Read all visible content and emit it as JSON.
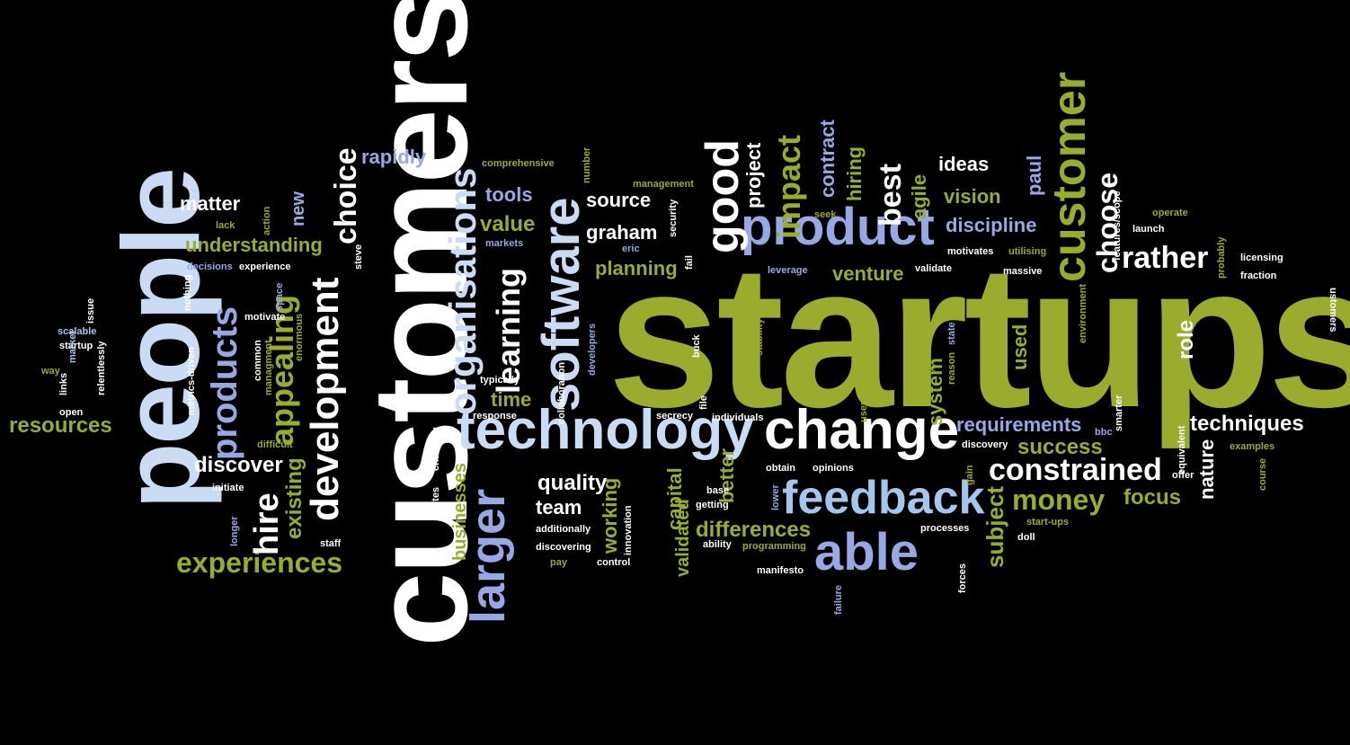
{
  "palette": {
    "white": "#ffffff",
    "green": "#9aab2e",
    "blue": "#a5c6ec",
    "lightblue": "#c9dcf3",
    "purple": "#98a8e4",
    "background": "#000000"
  },
  "words": [
    {
      "text": "startups",
      "color": "green"
    },
    {
      "text": "customers",
      "color": "white"
    },
    {
      "text": "people",
      "color": "lightblue"
    },
    {
      "text": "technology",
      "color": "lightblue"
    },
    {
      "text": "change",
      "color": "white"
    },
    {
      "text": "product",
      "color": "purple"
    },
    {
      "text": "able",
      "color": "purple"
    },
    {
      "text": "feedback",
      "color": "blue"
    },
    {
      "text": "software",
      "color": "lightblue"
    },
    {
      "text": "customer",
      "color": "green"
    },
    {
      "text": "development",
      "color": "white"
    },
    {
      "text": "organisations",
      "color": "lightblue"
    },
    {
      "text": "larger",
      "color": "purple"
    },
    {
      "text": "good",
      "color": "white"
    },
    {
      "text": "constrained",
      "color": "white"
    },
    {
      "text": "experiences",
      "color": "green"
    },
    {
      "text": "products",
      "color": "purple"
    },
    {
      "text": "appealing",
      "color": "green"
    },
    {
      "text": "money",
      "color": "green"
    },
    {
      "text": "impact",
      "color": "green"
    },
    {
      "text": "choose",
      "color": "white"
    },
    {
      "text": "rather",
      "color": "white"
    },
    {
      "text": "choice",
      "color": "white"
    },
    {
      "text": "hire",
      "color": "white"
    },
    {
      "text": "learning",
      "color": "white"
    },
    {
      "text": "understanding",
      "color": "green"
    },
    {
      "text": "resources",
      "color": "green"
    },
    {
      "text": "differences",
      "color": "green"
    },
    {
      "text": "requirements",
      "color": "purple"
    },
    {
      "text": "best",
      "color": "white"
    },
    {
      "text": "planning",
      "color": "green"
    },
    {
      "text": "venture",
      "color": "green"
    },
    {
      "text": "discipline",
      "color": "purple"
    },
    {
      "text": "vision",
      "color": "green"
    },
    {
      "text": "existing",
      "color": "green"
    },
    {
      "text": "discover",
      "color": "white"
    },
    {
      "text": "value",
      "color": "green"
    },
    {
      "text": "tools",
      "color": "purple"
    },
    {
      "text": "source",
      "color": "white"
    },
    {
      "text": "graham",
      "color": "white"
    },
    {
      "text": "rapidly",
      "color": "purple"
    },
    {
      "text": "matter",
      "color": "white"
    },
    {
      "text": "ideas",
      "color": "white"
    },
    {
      "text": "success",
      "color": "green"
    },
    {
      "text": "techniques",
      "color": "white"
    },
    {
      "text": "focus",
      "color": "green"
    },
    {
      "text": "quality",
      "color": "white"
    },
    {
      "text": "team",
      "color": "white"
    },
    {
      "text": "time",
      "color": "green"
    },
    {
      "text": "subject",
      "color": "green"
    },
    {
      "text": "nature",
      "color": "white"
    },
    {
      "text": "role",
      "color": "white"
    },
    {
      "text": "used",
      "color": "green"
    },
    {
      "text": "system",
      "color": "green"
    },
    {
      "text": "better",
      "color": "green"
    },
    {
      "text": "capital",
      "color": "green"
    },
    {
      "text": "validated",
      "color": "green"
    },
    {
      "text": "working",
      "color": "green"
    },
    {
      "text": "businesses",
      "color": "green"
    },
    {
      "text": "paul",
      "color": "purple"
    },
    {
      "text": "agile",
      "color": "green"
    },
    {
      "text": "hiring",
      "color": "green"
    },
    {
      "text": "contract",
      "color": "purple"
    },
    {
      "text": "project",
      "color": "white"
    },
    {
      "text": "new",
      "color": "purple"
    },
    {
      "text": "comprehensive",
      "color": "green"
    },
    {
      "text": "management",
      "color": "green"
    },
    {
      "text": "number",
      "color": "green"
    },
    {
      "text": "lack",
      "color": "green"
    },
    {
      "text": "action",
      "color": "green"
    },
    {
      "text": "decisions",
      "color": "purple"
    },
    {
      "text": "experience",
      "color": "white"
    },
    {
      "text": "nothing",
      "color": "white"
    },
    {
      "text": "motivate",
      "color": "white"
    },
    {
      "text": "space",
      "color": "purple"
    },
    {
      "text": "steve",
      "color": "white"
    },
    {
      "text": "scalable",
      "color": "blue"
    },
    {
      "text": "startup",
      "color": "white"
    },
    {
      "text": "issue",
      "color": "white"
    },
    {
      "text": "market",
      "color": "blue"
    },
    {
      "text": "way",
      "color": "green"
    },
    {
      "text": "links",
      "color": "white"
    },
    {
      "text": "relentlessly",
      "color": "white"
    },
    {
      "text": "open",
      "color": "white"
    },
    {
      "text": "metrics-driven",
      "color": "white"
    },
    {
      "text": "common",
      "color": "white"
    },
    {
      "text": "managment",
      "color": "green"
    },
    {
      "text": "difficult",
      "color": "green"
    },
    {
      "text": "enormous",
      "color": "green"
    },
    {
      "text": "initiate",
      "color": "white"
    },
    {
      "text": "longer",
      "color": "purple"
    },
    {
      "text": "staff",
      "color": "white"
    },
    {
      "text": "typically",
      "color": "white"
    },
    {
      "text": "response",
      "color": "white"
    },
    {
      "text": "collaboration",
      "color": "white"
    },
    {
      "text": "developers",
      "color": "purple"
    },
    {
      "text": "changing",
      "color": "white"
    },
    {
      "text": "quotes",
      "color": "white"
    },
    {
      "text": "additionally",
      "color": "white"
    },
    {
      "text": "innovation",
      "color": "white"
    },
    {
      "text": "discovering",
      "color": "white"
    },
    {
      "text": "pay",
      "color": "green"
    },
    {
      "text": "control",
      "color": "white"
    },
    {
      "text": "eric",
      "color": "purple"
    },
    {
      "text": "markets",
      "color": "purple"
    },
    {
      "text": "security",
      "color": "white"
    },
    {
      "text": "fail",
      "color": "white"
    },
    {
      "text": "buck",
      "color": "white"
    },
    {
      "text": "secrecy",
      "color": "white"
    },
    {
      "text": "file",
      "color": "white"
    },
    {
      "text": "individuals",
      "color": "white"
    },
    {
      "text": "stability",
      "color": "green"
    },
    {
      "text": "base",
      "color": "white"
    },
    {
      "text": "getting",
      "color": "white"
    },
    {
      "text": "ability",
      "color": "white"
    },
    {
      "text": "programming",
      "color": "green"
    },
    {
      "text": "manifesto",
      "color": "white"
    },
    {
      "text": "obtain",
      "color": "white"
    },
    {
      "text": "lower",
      "color": "purple"
    },
    {
      "text": "opinions",
      "color": "white"
    },
    {
      "text": "user",
      "color": "green"
    },
    {
      "text": "failure",
      "color": "purple"
    },
    {
      "text": "forces",
      "color": "white"
    },
    {
      "text": "processes",
      "color": "white"
    },
    {
      "text": "leverage",
      "color": "purple"
    },
    {
      "text": "seek",
      "color": "green"
    },
    {
      "text": "validate",
      "color": "white"
    },
    {
      "text": "motivates",
      "color": "white"
    },
    {
      "text": "utilising",
      "color": "green"
    },
    {
      "text": "massive",
      "color": "white"
    },
    {
      "text": "state",
      "color": "purple"
    },
    {
      "text": "reason",
      "color": "green"
    },
    {
      "text": "discovery",
      "color": "white"
    },
    {
      "text": "bbc",
      "color": "purple"
    },
    {
      "text": "gain",
      "color": "green"
    },
    {
      "text": "start-ups",
      "color": "green"
    },
    {
      "text": "doll",
      "color": "white"
    },
    {
      "text": "smarter",
      "color": "white"
    },
    {
      "text": "environment",
      "color": "green"
    },
    {
      "text": "features/scope",
      "color": "white"
    },
    {
      "text": "launch",
      "color": "white"
    },
    {
      "text": "probably",
      "color": "green"
    },
    {
      "text": "licensing",
      "color": "white"
    },
    {
      "text": "fraction",
      "color": "white"
    },
    {
      "text": "operate",
      "color": "green"
    },
    {
      "text": "equivalent",
      "color": "white"
    },
    {
      "text": "offer",
      "color": "white"
    },
    {
      "text": "examples",
      "color": "green"
    },
    {
      "text": "course",
      "color": "green"
    },
    {
      "text": "ustomers",
      "color": "white"
    }
  ]
}
